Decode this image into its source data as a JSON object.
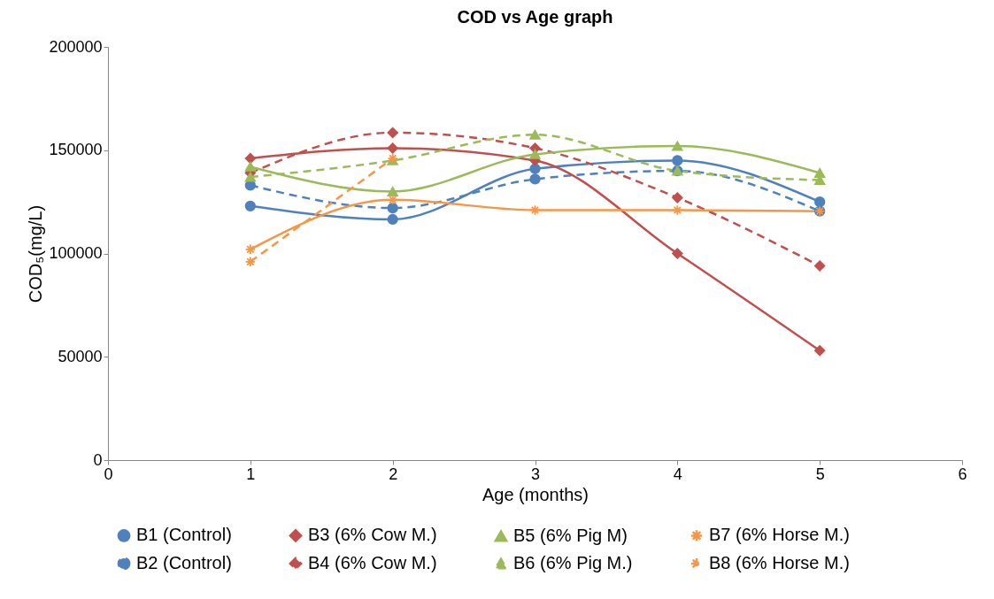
{
  "chart_data": {
    "type": "line",
    "title": "COD vs Age graph",
    "xlabel": "Age (months)",
    "ylabel": "COD₅(mg/L)",
    "x": [
      1,
      2,
      3,
      4,
      5
    ],
    "xlim": [
      0,
      6
    ],
    "xticks": [
      0,
      1,
      2,
      3,
      4,
      5,
      6
    ],
    "ylim": [
      0,
      200000
    ],
    "yticks": [
      0,
      50000,
      100000,
      150000,
      200000
    ],
    "grid": false,
    "legend": "bottom",
    "series": [
      {
        "name": "B1 (Control)",
        "color": "#4f81bd",
        "marker": "circle",
        "line_style": "solid",
        "values": [
          123000,
          116500,
          141000,
          145000,
          125000
        ]
      },
      {
        "name": "B2 (Control)",
        "color": "#4f81bd",
        "marker": "circle",
        "line_style": "dashed",
        "values": [
          133000,
          122000,
          136000,
          140000,
          120500
        ]
      },
      {
        "name": "B3 (6% Cow M.)",
        "color": "#c0504d",
        "marker": "diamond",
        "line_style": "solid",
        "values": [
          146000,
          151000,
          145000,
          100000,
          53000
        ]
      },
      {
        "name": "B4 (6% Cow M.)",
        "color": "#c0504d",
        "marker": "diamond",
        "line_style": "dashed",
        "values": [
          139000,
          158500,
          151000,
          127000,
          94000
        ]
      },
      {
        "name": "B5 (6% Pig M)",
        "color": "#9bbb59",
        "marker": "triangle",
        "line_style": "solid",
        "values": [
          142000,
          130000,
          148000,
          152000,
          139000
        ]
      },
      {
        "name": "B6 (6% Pig M.)",
        "color": "#9bbb59",
        "marker": "triangle",
        "line_style": "dashed",
        "values": [
          137000,
          145000,
          157500,
          140000,
          135500
        ]
      },
      {
        "name": "B7 (6% Horse M.)",
        "color": "#f79646",
        "marker": "cross",
        "line_style": "solid",
        "values": [
          102000,
          126000,
          121000,
          121000,
          120500
        ]
      },
      {
        "name": "B8 (6% Horse M.)",
        "color": "#f79646",
        "marker": "cross",
        "line_style": "dashed",
        "values": [
          96000,
          146000,
          null,
          null,
          null
        ]
      }
    ]
  }
}
